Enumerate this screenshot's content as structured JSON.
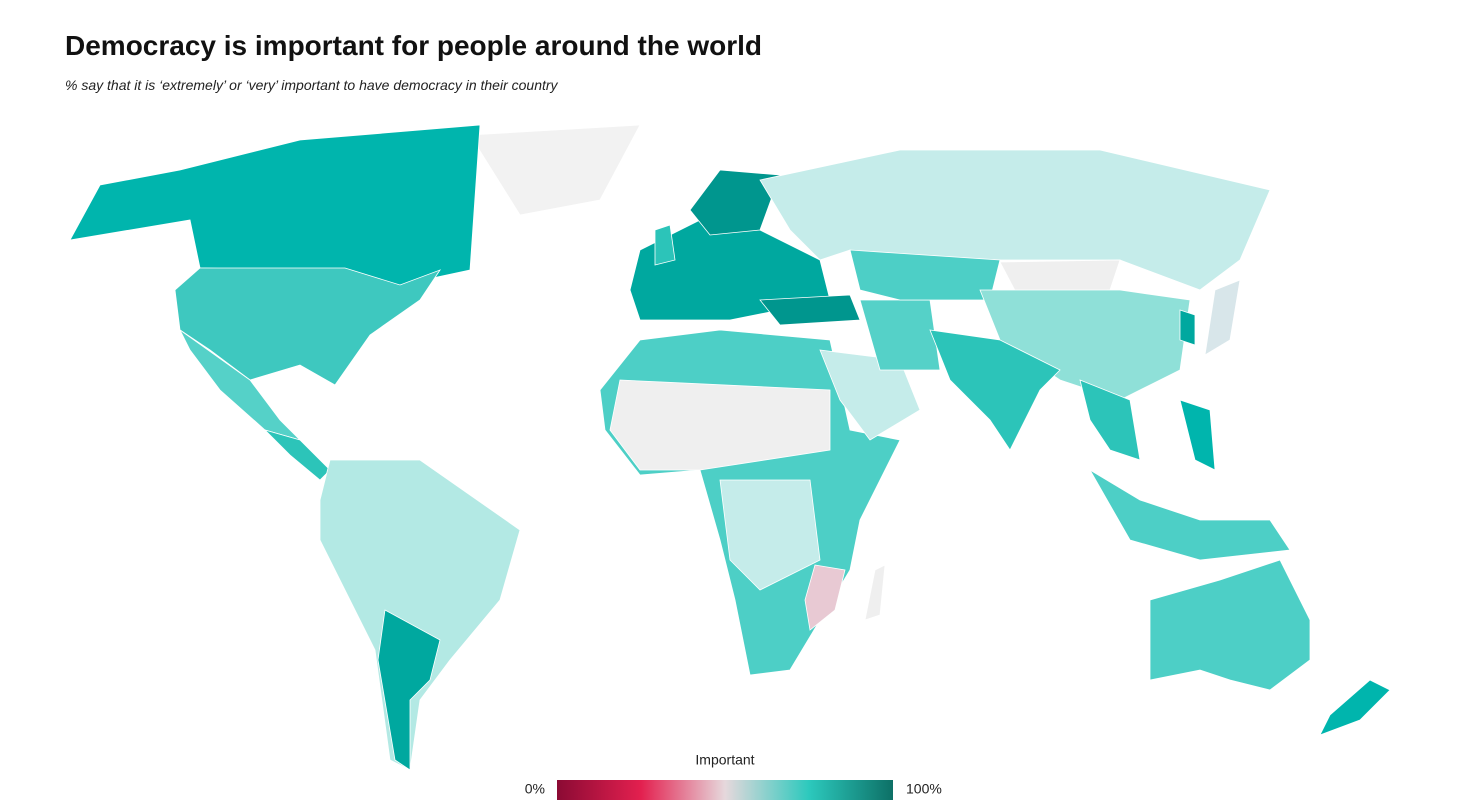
{
  "header": {
    "title": "Democracy is important for people around the world",
    "subtitle": "% say that it is ‘extremely’ or ‘very’ important to have democracy in their country"
  },
  "legend": {
    "title": "Important",
    "min_label": "0%",
    "max_label": "100%"
  }
}
